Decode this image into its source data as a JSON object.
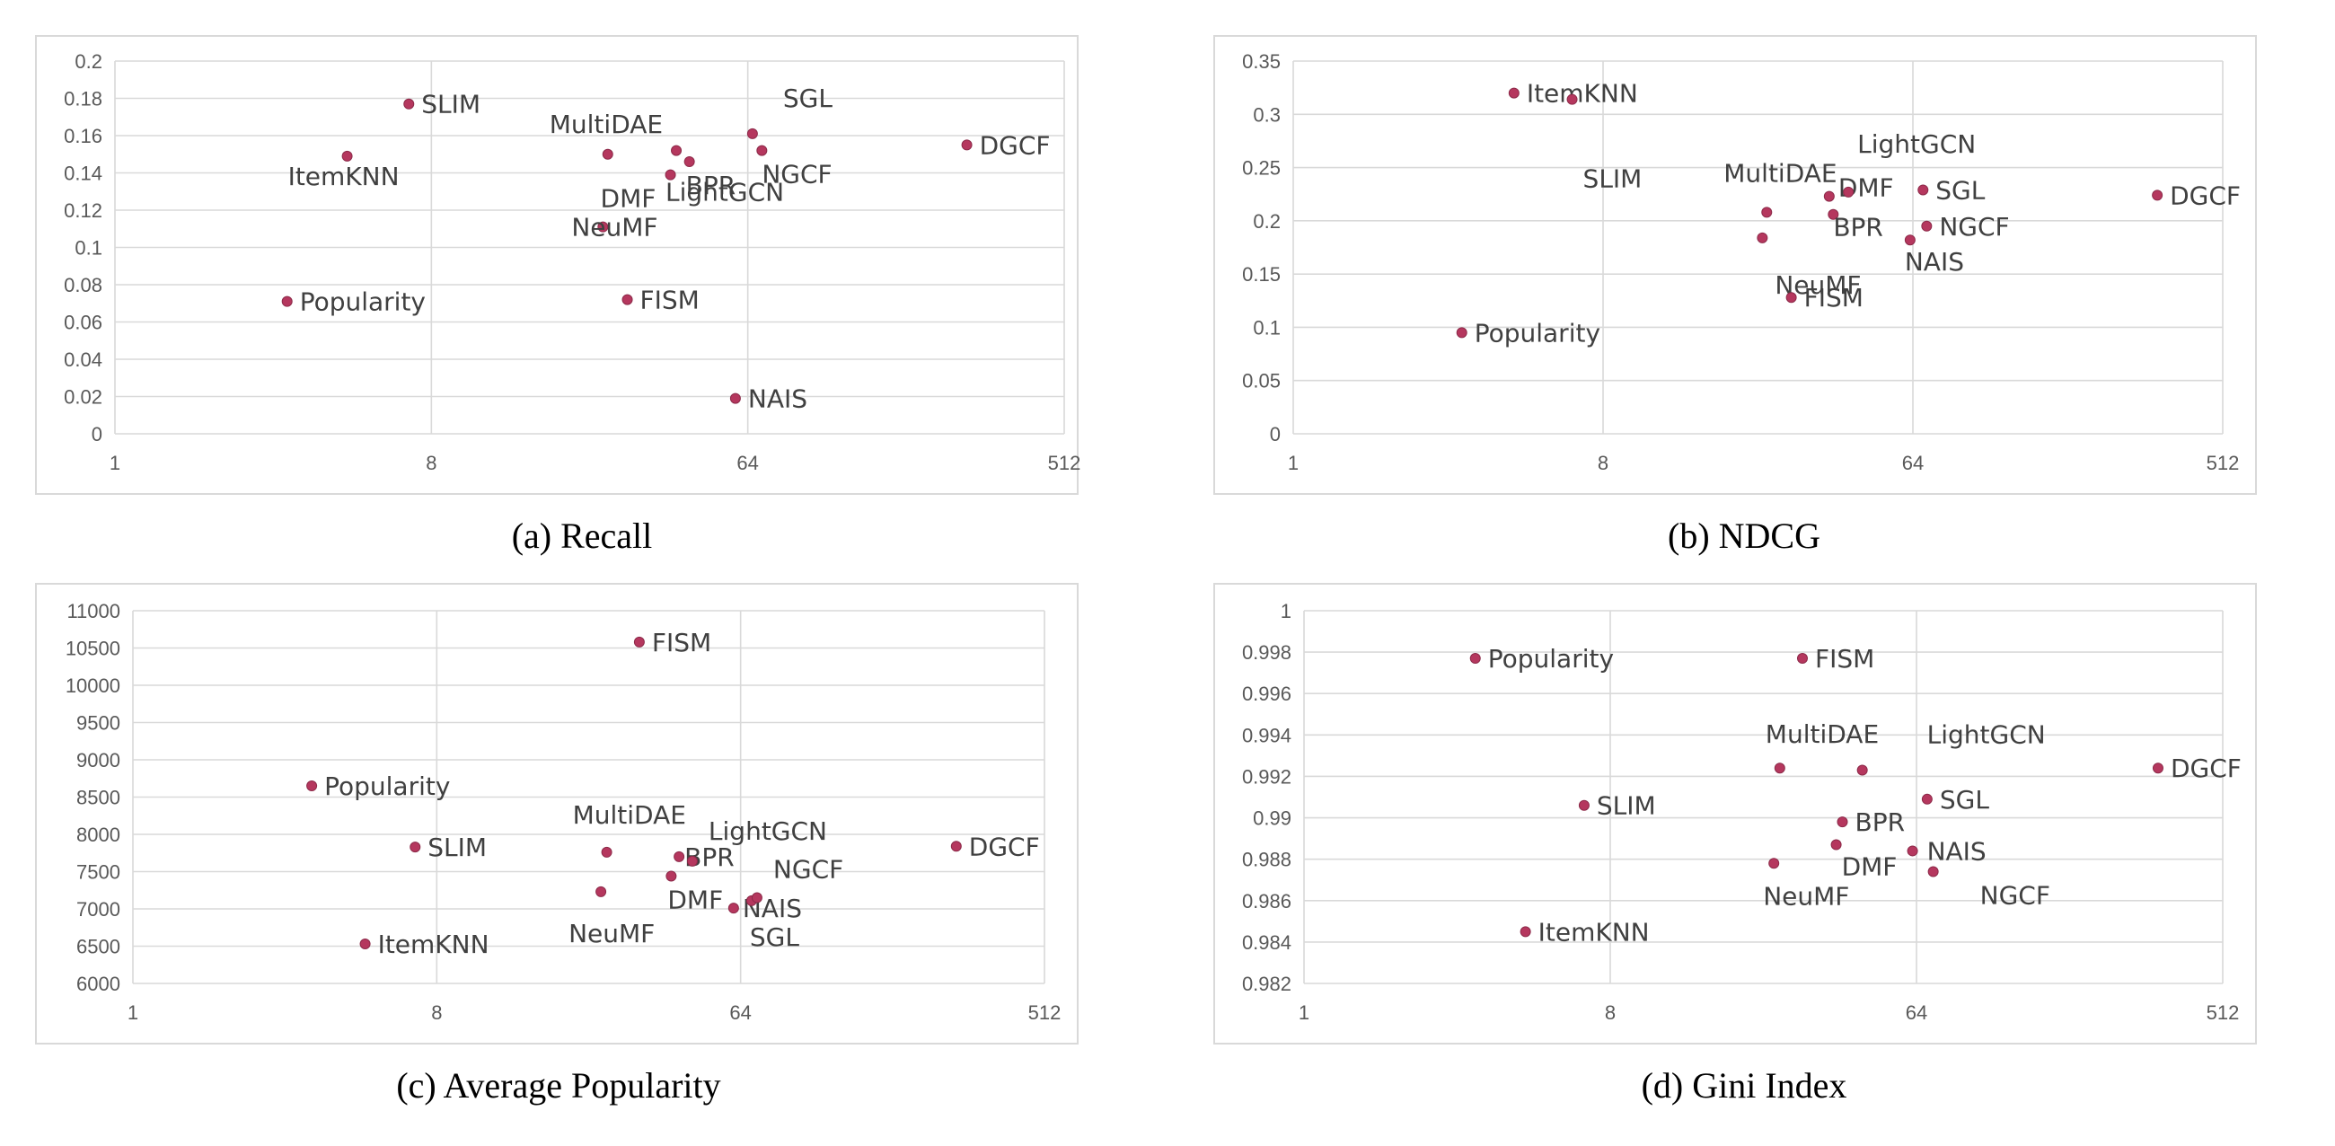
{
  "chart_data": [
    {
      "type": "scatter",
      "caption": "(a) Recall",
      "x_scale": "log2",
      "xlim": [
        1,
        512
      ],
      "x_ticks": [
        1,
        8,
        64,
        512
      ],
      "x_tick_labels": [
        "1",
        "8",
        "64",
        "512"
      ],
      "ylim": [
        0,
        0.2
      ],
      "y_ticks": [
        0,
        0.02,
        0.04,
        0.06,
        0.08,
        0.1,
        0.12,
        0.14,
        0.16,
        0.18,
        0.2
      ],
      "y_tick_labels": [
        "0",
        "0.02",
        "0.04",
        "0.06",
        "0.08",
        "0.1",
        "0.12",
        "0.14",
        "0.16",
        "0.18",
        "0.2"
      ],
      "grid": true,
      "points": [
        {
          "label": "SLIM",
          "x": 6.9,
          "y": 0.177
        },
        {
          "label": "ItemKNN",
          "x": 4.6,
          "y": 0.149
        },
        {
          "label": "Popularity",
          "x": 3.1,
          "y": 0.071
        },
        {
          "label": "MultiDAE",
          "x": 25.5,
          "y": 0.15
        },
        {
          "label": "DMF",
          "x": 38.5,
          "y": 0.139
        },
        {
          "label": "BPR",
          "x": 43.6,
          "y": 0.146
        },
        {
          "label": "NeuMF",
          "x": 24.7,
          "y": 0.111
        },
        {
          "label": "FISM",
          "x": 29,
          "y": 0.072
        },
        {
          "label": "SGL",
          "x": 66,
          "y": 0.161
        },
        {
          "label": "NGCF",
          "x": 70.2,
          "y": 0.152
        },
        {
          "label": "LightGCN",
          "x": 40,
          "y": 0.152
        },
        {
          "label": "NAIS",
          "x": 59,
          "y": 0.019
        },
        {
          "label": "DGCF",
          "x": 270,
          "y": 0.155
        }
      ]
    },
    {
      "type": "scatter",
      "caption": "(b) NDCG",
      "x_scale": "log2",
      "xlim": [
        1,
        512
      ],
      "x_ticks": [
        1,
        8,
        64,
        512
      ],
      "x_tick_labels": [
        "1",
        "8",
        "64",
        "512"
      ],
      "ylim": [
        0,
        0.35
      ],
      "y_ticks": [
        0,
        0.05,
        0.1,
        0.15,
        0.2,
        0.25,
        0.3,
        0.35
      ],
      "y_tick_labels": [
        "0",
        "0.05",
        "0.1",
        "0.15",
        "0.2",
        "0.25",
        "0.3",
        "0.35"
      ],
      "grid": true,
      "points": [
        {
          "label": "ItemKNN",
          "x": 4.4,
          "y": 0.32
        },
        {
          "label": "SLIM",
          "x": 6.5,
          "y": 0.314
        },
        {
          "label": "Popularity",
          "x": 3.1,
          "y": 0.095
        },
        {
          "label": "MultiDAE",
          "x": 24,
          "y": 0.208
        },
        {
          "label": "DMF",
          "x": 36.5,
          "y": 0.223
        },
        {
          "label": "BPR",
          "x": 37.5,
          "y": 0.206
        },
        {
          "label": "NeuMF",
          "x": 23.3,
          "y": 0.184
        },
        {
          "label": "FISM",
          "x": 28.3,
          "y": 0.128
        },
        {
          "label": "LightGCN",
          "x": 41.5,
          "y": 0.227
        },
        {
          "label": "SGL",
          "x": 68.5,
          "y": 0.229
        },
        {
          "label": "NGCF",
          "x": 70.2,
          "y": 0.195
        },
        {
          "label": "NAIS",
          "x": 62.8,
          "y": 0.182
        },
        {
          "label": "DGCF",
          "x": 330,
          "y": 0.224
        }
      ]
    },
    {
      "type": "scatter",
      "caption": "(c) Average Popularity",
      "x_scale": "log2",
      "xlim": [
        1,
        512
      ],
      "x_ticks": [
        1,
        8,
        64,
        512
      ],
      "x_tick_labels": [
        "1",
        "8",
        "64",
        "512"
      ],
      "ylim": [
        6000,
        11000
      ],
      "y_ticks": [
        6000,
        6500,
        7000,
        7500,
        8000,
        8500,
        9000,
        9500,
        10000,
        10500,
        11000
      ],
      "y_tick_labels": [
        "6000",
        "6500",
        "7000",
        "7500",
        "8000",
        "8500",
        "9000",
        "9500",
        "10000",
        "10500",
        "11000"
      ],
      "grid": true,
      "points": [
        {
          "label": "FISM",
          "x": 32,
          "y": 10580
        },
        {
          "label": "Popularity",
          "x": 3.4,
          "y": 8650
        },
        {
          "label": "SLIM",
          "x": 6.9,
          "y": 7830
        },
        {
          "label": "ItemKNN",
          "x": 4.9,
          "y": 6530
        },
        {
          "label": "MultiDAE",
          "x": 25.6,
          "y": 7760
        },
        {
          "label": "BPR",
          "x": 42,
          "y": 7700
        },
        {
          "label": "LightGCN",
          "x": 46,
          "y": 7640
        },
        {
          "label": "DMF",
          "x": 39.8,
          "y": 7440
        },
        {
          "label": "NeuMF",
          "x": 24.6,
          "y": 7230
        },
        {
          "label": "NAIS",
          "x": 61,
          "y": 7010
        },
        {
          "label": "SGL",
          "x": 69,
          "y": 7110
        },
        {
          "label": "NGCF",
          "x": 71.6,
          "y": 7150
        },
        {
          "label": "DGCF",
          "x": 280,
          "y": 7840
        }
      ]
    },
    {
      "type": "scatter",
      "caption": "(d) Gini Index",
      "x_scale": "log2",
      "xlim": [
        1,
        512
      ],
      "x_ticks": [
        1,
        8,
        64,
        512
      ],
      "x_tick_labels": [
        "1",
        "8",
        "64",
        "512"
      ],
      "ylim": [
        0.982,
        1
      ],
      "y_ticks": [
        0.982,
        0.984,
        0.986,
        0.988,
        0.99,
        0.992,
        0.994,
        0.996,
        0.998,
        1
      ],
      "y_tick_labels": [
        "0.982",
        "0.984",
        "0.986",
        "0.988",
        "0.99",
        "0.992",
        "0.994",
        "0.996",
        "0.998",
        "1"
      ],
      "grid": true,
      "points": [
        {
          "label": "Popularity",
          "x": 3.2,
          "y": 0.9977
        },
        {
          "label": "FISM",
          "x": 29.5,
          "y": 0.9977
        },
        {
          "label": "MultiDAE",
          "x": 25.3,
          "y": 0.9924
        },
        {
          "label": "LightGCN",
          "x": 44.3,
          "y": 0.9923
        },
        {
          "label": "SGL",
          "x": 68.8,
          "y": 0.9909
        },
        {
          "label": "SLIM",
          "x": 6.7,
          "y": 0.9906
        },
        {
          "label": "BPR",
          "x": 38.7,
          "y": 0.9898
        },
        {
          "label": "DMF",
          "x": 37.1,
          "y": 0.9887
        },
        {
          "label": "NAIS",
          "x": 62.3,
          "y": 0.9884
        },
        {
          "label": "NeuMF",
          "x": 24.3,
          "y": 0.9878
        },
        {
          "label": "NGCF",
          "x": 71.7,
          "y": 0.9874
        },
        {
          "label": "ItemKNN",
          "x": 4.5,
          "y": 0.9845
        },
        {
          "label": "DGCF",
          "x": 330,
          "y": 0.9924
        }
      ]
    }
  ],
  "colors": {
    "marker": "#b5375e",
    "grid": "#d9d9d9",
    "tick_text": "#595959",
    "label_text": "#404040"
  }
}
